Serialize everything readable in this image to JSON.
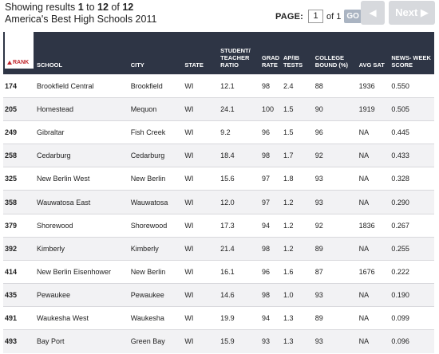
{
  "summary": {
    "prefix": "Showing results ",
    "from": "1",
    "to_word": " to ",
    "to": "12",
    "of_word": " of ",
    "total": "12"
  },
  "list_title": "America's Best High Schools 2011",
  "pager": {
    "label": "PAGE:",
    "current": "1",
    "of_text": "of 1",
    "go_label": "GO"
  },
  "nav": {
    "prev_symbol": "◀",
    "next_label": "Next ▶"
  },
  "table": {
    "rank_header": "RANK",
    "columns": [
      {
        "key": "school",
        "label": "SCHOOL"
      },
      {
        "key": "city",
        "label": "CITY"
      },
      {
        "key": "state",
        "label": "STATE"
      },
      {
        "key": "ratio",
        "label": "STUDENT/ TEACHER RATIO"
      },
      {
        "key": "grad",
        "label": "GRAD RATE"
      },
      {
        "key": "ap",
        "label": "AP/IB TESTS"
      },
      {
        "key": "college",
        "label": "COLLEGE BOUND (%)"
      },
      {
        "key": "sat",
        "label": "AVG SAT"
      },
      {
        "key": "score",
        "label": "NEWS- WEEK SCORE"
      }
    ],
    "rows": [
      {
        "rank": "174",
        "school": "Brookfield Central",
        "city": "Brookfield",
        "state": "WI",
        "ratio": "12.1",
        "grad": "98",
        "ap": "2.4",
        "college": "88",
        "sat": "1936",
        "score": "0.550"
      },
      {
        "rank": "205",
        "school": "Homestead",
        "city": "Mequon",
        "state": "WI",
        "ratio": "24.1",
        "grad": "100",
        "ap": "1.5",
        "college": "90",
        "sat": "1919",
        "score": "0.505"
      },
      {
        "rank": "249",
        "school": "Gibraltar",
        "city": "Fish Creek",
        "state": "WI",
        "ratio": "9.2",
        "grad": "96",
        "ap": "1.5",
        "college": "96",
        "sat": "NA",
        "score": "0.445"
      },
      {
        "rank": "258",
        "school": "Cedarburg",
        "city": "Cedarburg",
        "state": "WI",
        "ratio": "18.4",
        "grad": "98",
        "ap": "1.7",
        "college": "92",
        "sat": "NA",
        "score": "0.433"
      },
      {
        "rank": "325",
        "school": "New Berlin West",
        "city": "New Berlin",
        "state": "WI",
        "ratio": "15.6",
        "grad": "97",
        "ap": "1.8",
        "college": "93",
        "sat": "NA",
        "score": "0.328"
      },
      {
        "rank": "358",
        "school": "Wauwatosa East",
        "city": "Wauwatosa",
        "state": "WI",
        "ratio": "12.0",
        "grad": "97",
        "ap": "1.2",
        "college": "93",
        "sat": "NA",
        "score": "0.290"
      },
      {
        "rank": "379",
        "school": "Shorewood",
        "city": "Shorewood",
        "state": "WI",
        "ratio": "17.3",
        "grad": "94",
        "ap": "1.2",
        "college": "92",
        "sat": "1836",
        "score": "0.267"
      },
      {
        "rank": "392",
        "school": "Kimberly",
        "city": "Kimberly",
        "state": "WI",
        "ratio": "21.4",
        "grad": "98",
        "ap": "1.2",
        "college": "89",
        "sat": "NA",
        "score": "0.255"
      },
      {
        "rank": "414",
        "school": "New Berlin Eisenhower",
        "city": "New Berlin",
        "state": "WI",
        "ratio": "16.1",
        "grad": "96",
        "ap": "1.6",
        "college": "87",
        "sat": "1676",
        "score": "0.222"
      },
      {
        "rank": "435",
        "school": "Pewaukee",
        "city": "Pewaukee",
        "state": "WI",
        "ratio": "14.6",
        "grad": "98",
        "ap": "1.0",
        "college": "93",
        "sat": "NA",
        "score": "0.190"
      },
      {
        "rank": "491",
        "school": "Waukesha West",
        "city": "Waukesha",
        "state": "WI",
        "ratio": "19.9",
        "grad": "94",
        "ap": "1.3",
        "college": "89",
        "sat": "NA",
        "score": "0.099"
      },
      {
        "rank": "493",
        "school": "Bay Port",
        "city": "Green Bay",
        "state": "WI",
        "ratio": "15.9",
        "grad": "93",
        "ap": "1.3",
        "college": "93",
        "sat": "NA",
        "score": "0.096"
      }
    ]
  },
  "colors": {
    "header_bg": "#2e3545",
    "rank_accent": "#c1272d",
    "go_button": "#aab4c2",
    "nav_button": "#d7d9dd",
    "row_alt": "#f2f2f4"
  }
}
